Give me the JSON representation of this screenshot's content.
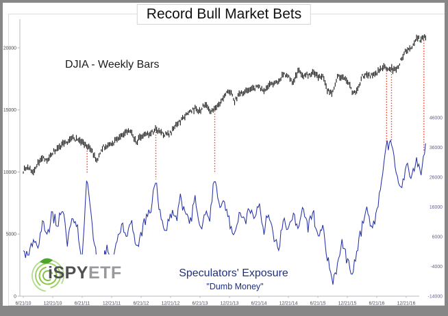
{
  "window": {
    "frame_color": "#878787",
    "background": "#ffffff"
  },
  "header": {
    "title": "Record Bull Market Bets"
  },
  "annotations": {
    "djia_label": "DJIA - Weekly Bars",
    "exposure_label": "Speculators' Exposure",
    "exposure_sublabel": "\"Dumb Money\""
  },
  "logo": {
    "text_primary": "iSPY",
    "text_secondary": "ETF",
    "green": "#8dc63f"
  },
  "chart_data": {
    "type": "line",
    "title": "Record Bull Market Bets",
    "grid": false,
    "legend": "none",
    "x_axis": {
      "tick_labels": [
        "6/21/10",
        "12/21/10",
        "6/21/11",
        "12/21/11",
        "6/21/12",
        "12/21/12",
        "6/21/13",
        "12/21/13",
        "6/21/14",
        "12/21/14",
        "6/21/15",
        "12/21/15",
        "6/21/16",
        "12/21/16"
      ],
      "label_color": "#45465a"
    },
    "left_axis": {
      "series": "DJIA",
      "tick_values": [
        20000,
        15000,
        10000,
        5000,
        0
      ],
      "tick_labels": [
        "20000",
        "15000",
        "10000",
        "5000",
        "0"
      ],
      "range": [
        0,
        22000
      ],
      "label_color": "#4a4a4a"
    },
    "right_axis": {
      "series": "Speculators' Exposure",
      "tick_values": [
        46000,
        36000,
        26000,
        16000,
        6000,
        -4000,
        -14000
      ],
      "tick_labels": [
        "46000",
        "36000",
        "26000",
        "16000",
        "6000",
        "-4000",
        "-14000"
      ],
      "range": [
        -14000,
        46000
      ],
      "label_color": "#5a5da5"
    },
    "series": [
      {
        "name": "DJIA (weekly bars)",
        "axis": "left",
        "style": "ohlc-bars",
        "color": "#1b1b1b",
        "start": "2010-06",
        "interval_months": 1,
        "values": [
          10100,
          10400,
          10000,
          10800,
          11100,
          11000,
          11577,
          11892,
          12226,
          12320,
          12810,
          12570,
          12414,
          12143,
          11613,
          10913,
          11955,
          12045,
          12217,
          12632,
          12952,
          13212,
          13213,
          12393,
          12880,
          13008,
          13090,
          13437,
          13096,
          13025,
          13104,
          13860,
          14054,
          14578,
          14839,
          15115,
          14909,
          15499,
          14810,
          15129,
          15545,
          16086,
          16576,
          15698,
          16321,
          16457,
          16580,
          16717,
          16826,
          16563,
          17098,
          17042,
          17390,
          17828,
          17823,
          17164,
          18132,
          17776,
          17840,
          18010,
          17619,
          17689,
          16528,
          16284,
          17663,
          17719,
          17425,
          16466,
          16516,
          17685,
          17773,
          17787,
          17929,
          18432,
          18400,
          18308,
          18142,
          19123,
          19762,
          19864,
          20812,
          20663,
          20940
        ]
      },
      {
        "name": "Speculators' Exposure (Dumb Money)",
        "axis": "right",
        "style": "line",
        "color": "#2531a6",
        "start": "2010-06",
        "interval_months": 1,
        "values": [
          2000,
          -2000,
          6000,
          2000,
          12000,
          6000,
          14000,
          9000,
          16000,
          5000,
          13000,
          9000,
          -1000,
          27000,
          10000,
          -1000,
          -4000,
          2000,
          -2000,
          3000,
          10000,
          6000,
          12000,
          2000,
          6000,
          12000,
          16000,
          25000,
          12000,
          8000,
          14000,
          12000,
          18000,
          14000,
          10000,
          20000,
          8000,
          16000,
          12000,
          27000,
          15000,
          18000,
          10000,
          6000,
          14000,
          10000,
          16000,
          12000,
          18000,
          8000,
          14000,
          6000,
          2000,
          12000,
          8000,
          14000,
          8000,
          16000,
          10000,
          14000,
          6000,
          10000,
          -2000,
          -9000,
          -4000,
          4000,
          -2000,
          -6000,
          2000,
          10000,
          16000,
          8000,
          14000,
          25000,
          37500,
          38000,
          27000,
          22000,
          30000,
          26000,
          32000,
          27000,
          39000
        ]
      }
    ],
    "markers": {
      "description": "red dotted vertical lines linking exposure peaks to DJIA",
      "color": "#f43b25",
      "style": "dotted-vertical",
      "dates": [
        "2011-07",
        "2012-09",
        "2013-09",
        "2016-08",
        "2016-09",
        "2017-03"
      ],
      "t_months": [
        13,
        27,
        39,
        74,
        75,
        81.6
      ]
    }
  }
}
